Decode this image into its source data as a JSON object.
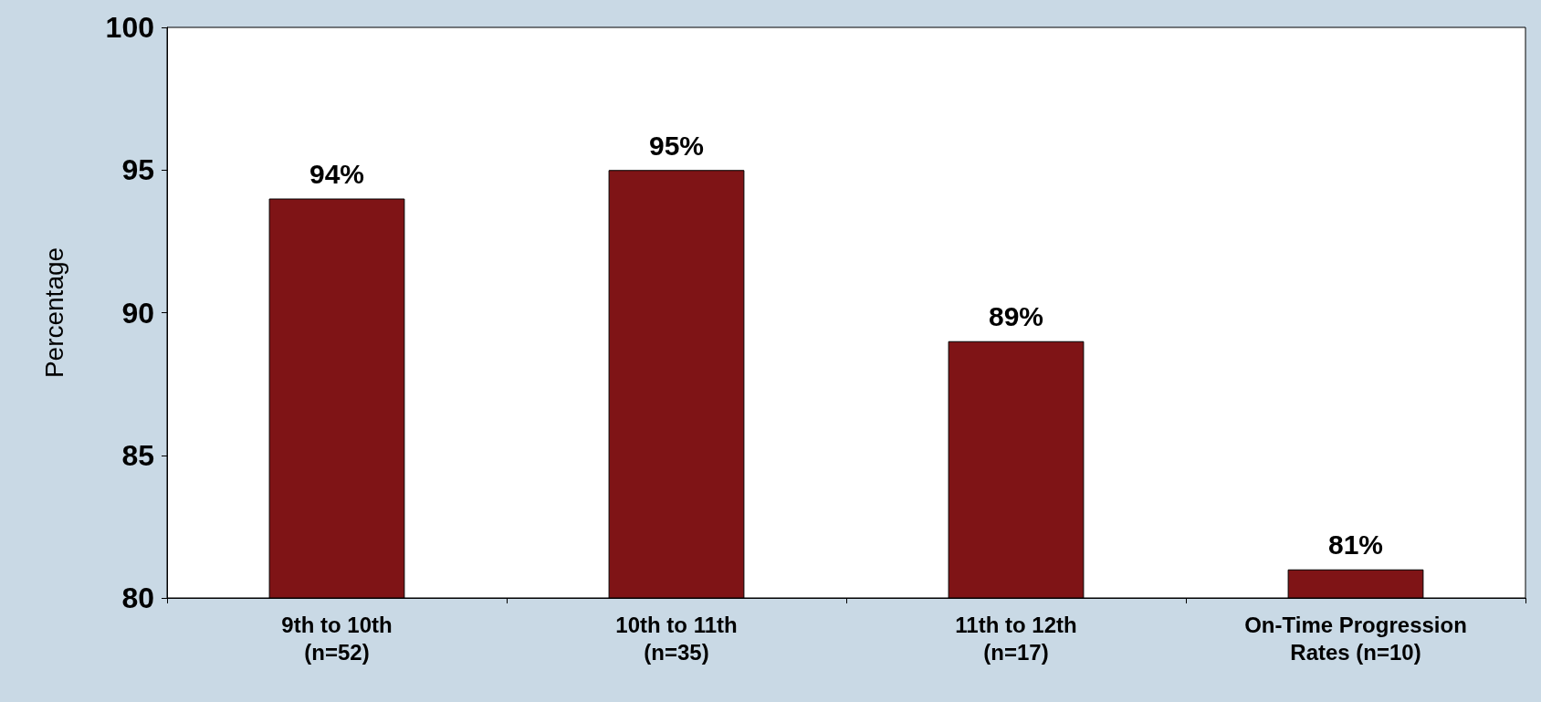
{
  "chart_data": {
    "type": "bar",
    "ylabel": "Percentage",
    "categories": [
      "9th to 10th\n(n=52)",
      "10th to 11th\n(n=35)",
      "11th to 12th\n(n=17)",
      "On-Time Progression\nRates (n=10)"
    ],
    "values": [
      94,
      95,
      89,
      81
    ],
    "value_labels": [
      "94%",
      "95%",
      "89%",
      "81%"
    ],
    "color": "#7f1416",
    "ylim": [
      80,
      100
    ],
    "yticks": [
      80,
      85,
      90,
      95,
      100
    ],
    "grid": false
  }
}
